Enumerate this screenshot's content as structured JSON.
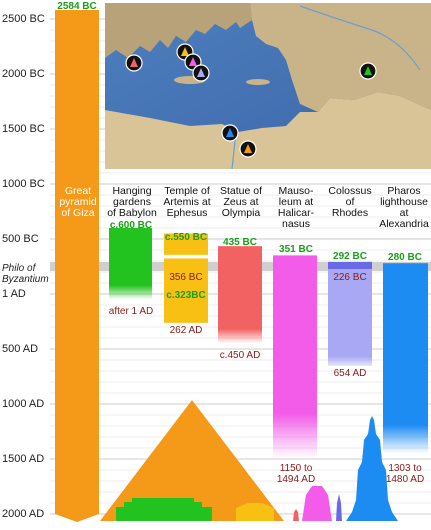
{
  "colors": {
    "pyramid": "#f59a18",
    "gardens": "#22c31e",
    "artemis": "#f8c012",
    "zeus": "#f26262",
    "mausoleum": "#f25ce8",
    "colossus": "#a8a8f4",
    "pharos": "#1c8cf2",
    "label_green": "#1aa01a",
    "label_red": "#8a1a1a",
    "philo_band": "#c8c8c8"
  },
  "axis": {
    "labels": [
      "2500 BC",
      "2000 BC",
      "1500 BC",
      "1000 BC",
      "500 BC",
      "1 AD",
      "500 AD",
      "1000 AD",
      "1500 AD",
      "2000 AD"
    ],
    "philo_label": "Philo of Byzantium"
  },
  "top_label": "2584 BC",
  "map": {
    "markers": [
      {
        "name": "pyramid-marker-icon",
        "color": "#f59a18"
      },
      {
        "name": "gardens-marker-icon",
        "color": "#22c31e"
      },
      {
        "name": "artemis-marker-icon",
        "color": "#f8c012"
      },
      {
        "name": "zeus-marker-icon",
        "color": "#f26262"
      },
      {
        "name": "mausoleum-marker-icon",
        "color": "#f25ce8"
      },
      {
        "name": "colossus-marker-icon",
        "color": "#a8a8f4"
      },
      {
        "name": "pharos-marker-icon",
        "color": "#1c8cf2"
      }
    ]
  },
  "wonders": [
    {
      "key": "pyramid",
      "title": "Great pyramid of Giza",
      "start": "2584 BC",
      "end": ""
    },
    {
      "key": "gardens",
      "title": "Hanging gardens of Babylon",
      "start": "c.600 BC",
      "end": "after 1 AD"
    },
    {
      "key": "artemis",
      "title": "Temple of Artemis at Ephesus",
      "start": "c.550 BC",
      "mid_red": "356 BC",
      "mid_green": "c.323BC",
      "end": "262 AD"
    },
    {
      "key": "zeus",
      "title": "Statue of Zeus at Olympia",
      "start": "435 BC",
      "end": "c.450 AD"
    },
    {
      "key": "mausoleum",
      "title": "Mausoleum at Halicarnasus",
      "start": "351 BC",
      "end": "1150 to 1494 AD"
    },
    {
      "key": "colossus",
      "title": "Colossus of Rhodes",
      "start": "292 BC",
      "mid_red": "226 BC",
      "end": "654 AD"
    },
    {
      "key": "pharos",
      "title": "Pharos lighthouse at Alexandria",
      "start": "280 BC",
      "end": "1303 to 1480 AD"
    }
  ],
  "header_lines": {
    "pyramid": [
      "Great",
      "pyramid",
      "of Giza"
    ],
    "gardens": [
      "Hanging",
      "gardens",
      "of Babylon"
    ],
    "artemis": [
      "Temple of",
      "Artemis at",
      "Ephesus"
    ],
    "zeus": [
      "Statue of",
      "Zeus at",
      "Olympia"
    ],
    "mausoleum": [
      "Mauso-",
      "leum at",
      "Halicar-",
      "nasus"
    ],
    "colossus": [
      "Colossus",
      "of",
      "Rhodes"
    ],
    "pharos": [
      "Pharos",
      "lighthouse",
      "at",
      "Alexandria"
    ]
  },
  "end_lines": {
    "mausoleum": [
      "1150 to",
      "1494 AD"
    ],
    "pharos": [
      "1303 to",
      "1480 AD"
    ]
  }
}
